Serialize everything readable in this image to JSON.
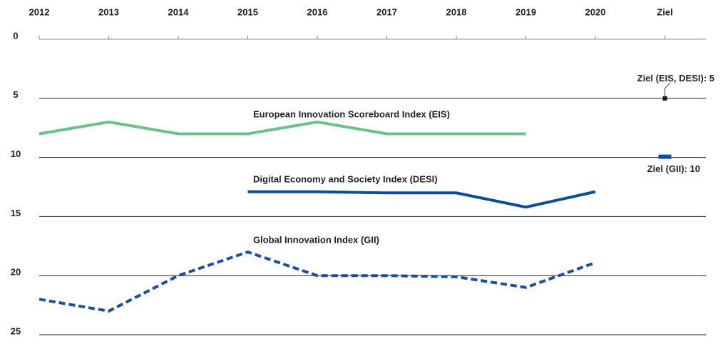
{
  "chart_data": {
    "type": "line",
    "categories": [
      "2012",
      "2013",
      "2014",
      "2015",
      "2016",
      "2017",
      "2018",
      "2019",
      "2020",
      "Ziel"
    ],
    "ylim": [
      0,
      25
    ],
    "y_inverted": true,
    "yticks": [
      0,
      5,
      10,
      15,
      20,
      25
    ],
    "grid": true,
    "series": [
      {
        "name": "European Innovation Scoreboard Index (EIS)",
        "color": "#6cc08b",
        "dashed": false,
        "values": [
          8,
          7,
          8,
          8,
          7,
          8,
          8,
          8,
          null,
          null
        ]
      },
      {
        "name": "Digital Economy and Society Index (DESI)",
        "color": "#0b4d9a",
        "dashed": false,
        "values": [
          null,
          null,
          null,
          12.9,
          12.9,
          13.0,
          13.0,
          14.2,
          12.9,
          null
        ]
      },
      {
        "name": "Global Innovation Index (GII)",
        "color": "#1a4f9f",
        "dashed": true,
        "values": [
          22,
          23,
          20,
          18,
          20,
          20,
          20.1,
          21,
          18.9,
          null
        ]
      }
    ],
    "targets": [
      {
        "label": "Ziel (EIS, DESI): 5",
        "value": 5,
        "color": "#111111"
      },
      {
        "label": "Ziel (GII): 10",
        "value": 10,
        "color": "#0b4d9a"
      }
    ]
  }
}
